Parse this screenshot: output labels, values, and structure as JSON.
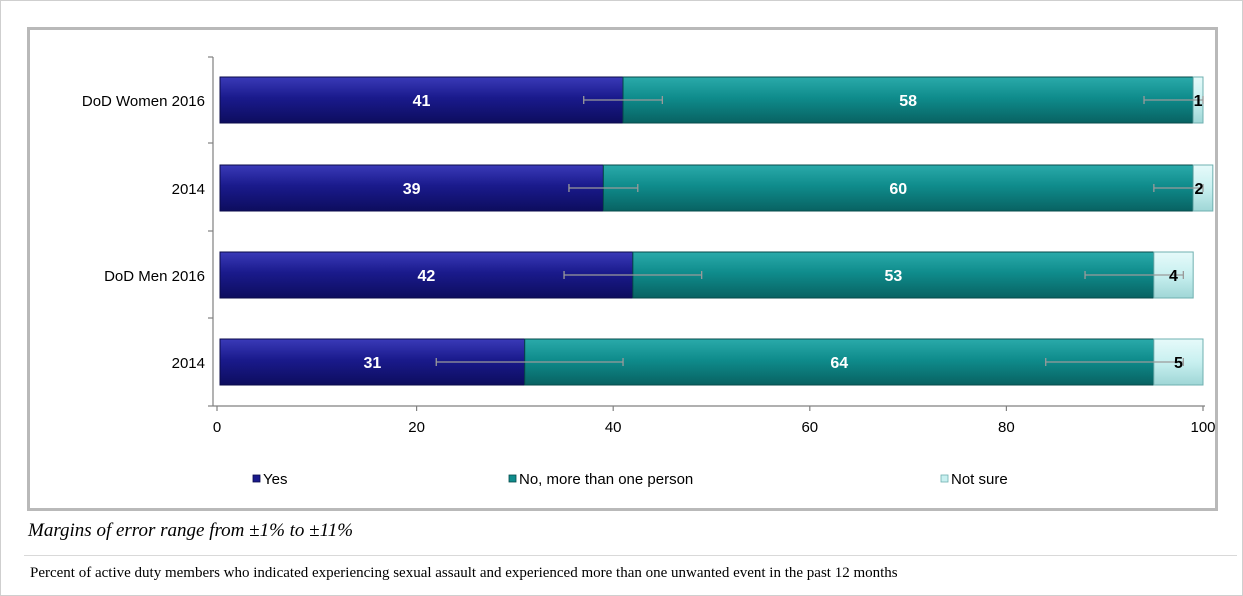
{
  "chart_data": {
    "type": "bar",
    "orientation": "horizontal",
    "stacked": true,
    "group_labels": [
      "DoD Women",
      "DoD Men"
    ],
    "categories": [
      "2016",
      "2014",
      "2016",
      "2014"
    ],
    "category_groups": [
      "DoD Women",
      "",
      "DoD Men",
      ""
    ],
    "series": [
      {
        "name": "Yes",
        "values": [
          41,
          39,
          42,
          31
        ],
        "color": "#1a1a8c"
      },
      {
        "name": "No, more than one person",
        "values": [
          58,
          60,
          53,
          64
        ],
        "color": "#0f8c8c"
      },
      {
        "name": "Not sure",
        "values": [
          1,
          2,
          4,
          5
        ],
        "color": "#c8f0f0"
      }
    ],
    "error_bars": [
      {
        "yes_range": [
          37,
          45
        ],
        "no_range": [
          94,
          100
        ]
      },
      {
        "yes_range": [
          35.5,
          42.5
        ],
        "no_range": [
          95,
          100
        ]
      },
      {
        "yes_range": [
          35,
          49
        ],
        "no_range": [
          88,
          98
        ]
      },
      {
        "yes_range": [
          22,
          41
        ],
        "no_range": [
          84,
          98
        ]
      }
    ],
    "xlim": [
      0,
      100
    ],
    "xticks": [
      "0",
      "20",
      "40",
      "60",
      "80",
      "100"
    ],
    "legend_position": "bottom",
    "grid": false,
    "xlabel": "",
    "ylabel": ""
  },
  "notes": {
    "moe": "Margins of error range from ±1% to ±11%",
    "caption": "Percent of active duty members who indicated experiencing sexual assault and experienced more than one unwanted event in the past 12 months"
  }
}
